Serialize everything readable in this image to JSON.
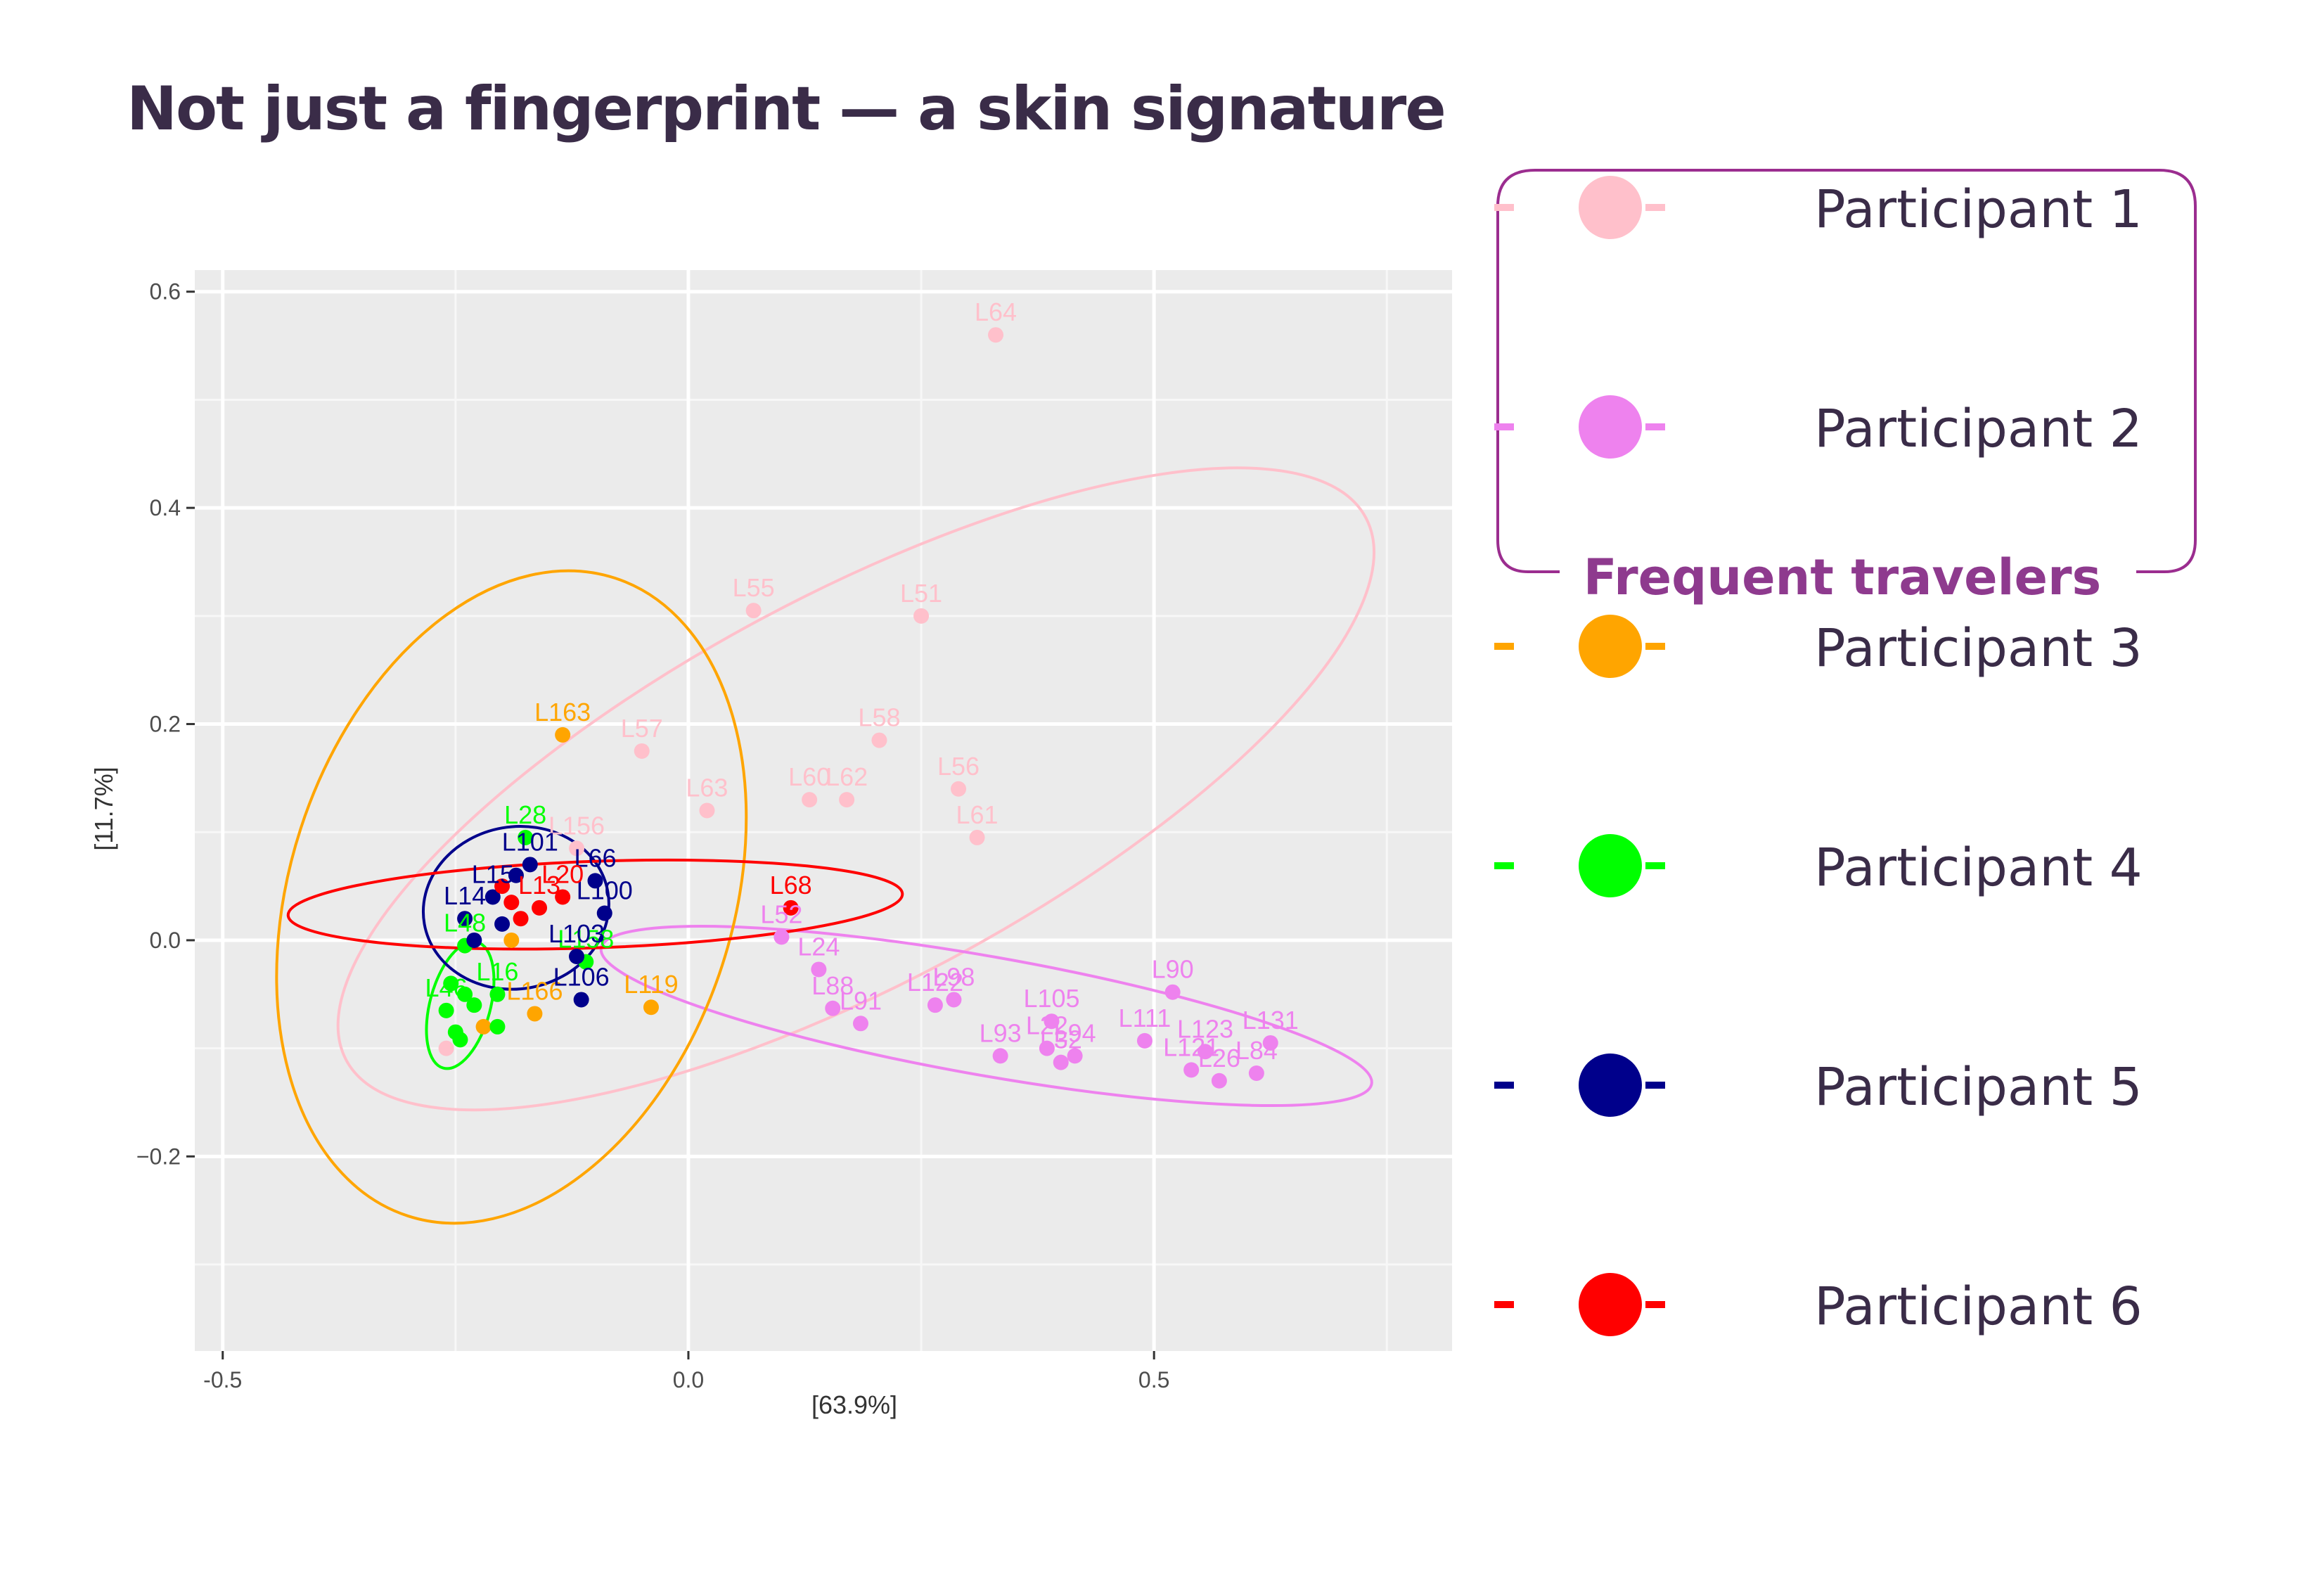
{
  "page": {
    "title": "Not just a fingerprint — a skin signature"
  },
  "legend": {
    "group_label": "Frequent travelers",
    "items": [
      {
        "label": "Participant 1",
        "color": "#ffc0cb"
      },
      {
        "label": "Participant 2",
        "color": "#ee82ee"
      },
      {
        "label": "Participant 3",
        "color": "#ffa500"
      },
      {
        "label": "Participant 4",
        "color": "#00ff00"
      },
      {
        "label": "Participant 5",
        "color": "#00008b"
      },
      {
        "label": "Participant 6",
        "color": "#ff0000"
      }
    ]
  },
  "chart_data": {
    "type": "scatter",
    "title": "",
    "xlabel": "[63.9%]",
    "ylabel": "[11.7%]",
    "xlim": [
      -0.53,
      0.82
    ],
    "ylim": [
      -0.38,
      0.62
    ],
    "x_ticks": [
      -0.5,
      0.0,
      0.5
    ],
    "x_tick_labels": [
      "-0.5",
      "0.0",
      "0.5"
    ],
    "y_ticks": [
      -0.2,
      0.0,
      0.2,
      0.4,
      0.6
    ],
    "y_tick_labels": [
      "−0.2",
      "0.0",
      "0.2",
      "0.4",
      "0.6"
    ],
    "series": [
      {
        "name": "Participant 1",
        "color": "#ffc0cb",
        "ellipse": {
          "cx": 0.18,
          "cy": 0.14,
          "rx": 0.62,
          "ry": 0.18,
          "angle_deg": 28
        },
        "points": [
          {
            "x": 0.33,
            "y": 0.56,
            "label": "L64"
          },
          {
            "x": 0.07,
            "y": 0.305,
            "label": "L55"
          },
          {
            "x": 0.25,
            "y": 0.3,
            "label": "L51"
          },
          {
            "x": 0.205,
            "y": 0.185,
            "label": "L58"
          },
          {
            "x": -0.05,
            "y": 0.175,
            "label": "L57"
          },
          {
            "x": 0.29,
            "y": 0.14,
            "label": "L56"
          },
          {
            "x": 0.02,
            "y": 0.12,
            "label": "L63"
          },
          {
            "x": 0.13,
            "y": 0.13,
            "label": "L60"
          },
          {
            "x": 0.17,
            "y": 0.13,
            "label": "L62"
          },
          {
            "x": 0.31,
            "y": 0.095,
            "label": "L61"
          },
          {
            "x": -0.12,
            "y": 0.085,
            "label": "L156"
          },
          {
            "x": -0.26,
            "y": -0.1,
            "label": ""
          }
        ]
      },
      {
        "name": "Participant 2",
        "color": "#ee82ee",
        "ellipse": {
          "cx": 0.32,
          "cy": -0.07,
          "rx": 0.42,
          "ry": 0.055,
          "angle_deg": -10
        },
        "points": [
          {
            "x": 0.52,
            "y": -0.048,
            "label": "L90"
          },
          {
            "x": 0.1,
            "y": 0.003,
            "label": "L52"
          },
          {
            "x": 0.14,
            "y": -0.027,
            "label": "L24"
          },
          {
            "x": 0.155,
            "y": -0.063,
            "label": "L88"
          },
          {
            "x": 0.185,
            "y": -0.077,
            "label": "L91"
          },
          {
            "x": 0.265,
            "y": -0.06,
            "label": "L122"
          },
          {
            "x": 0.285,
            "y": -0.055,
            "label": "L98"
          },
          {
            "x": 0.335,
            "y": -0.107,
            "label": "L93"
          },
          {
            "x": 0.39,
            "y": -0.075,
            "label": "L105"
          },
          {
            "x": 0.385,
            "y": -0.1,
            "label": "L22"
          },
          {
            "x": 0.4,
            "y": -0.113,
            "label": "L32"
          },
          {
            "x": 0.415,
            "y": -0.107,
            "label": "L94"
          },
          {
            "x": 0.49,
            "y": -0.093,
            "label": "L111"
          },
          {
            "x": 0.555,
            "y": -0.103,
            "label": "L123"
          },
          {
            "x": 0.54,
            "y": -0.12,
            "label": "L121"
          },
          {
            "x": 0.57,
            "y": -0.13,
            "label": "L26"
          },
          {
            "x": 0.61,
            "y": -0.123,
            "label": "L84"
          },
          {
            "x": 0.625,
            "y": -0.095,
            "label": "L131"
          }
        ]
      },
      {
        "name": "Participant 3",
        "color": "#ffa500",
        "ellipse": {
          "cx": -0.19,
          "cy": 0.04,
          "rx": 0.36,
          "ry": 0.205,
          "angle_deg": 72
        },
        "points": [
          {
            "x": -0.135,
            "y": 0.19,
            "label": "L163"
          },
          {
            "x": -0.04,
            "y": -0.062,
            "label": "L119"
          },
          {
            "x": -0.165,
            "y": -0.068,
            "label": "L166"
          },
          {
            "x": -0.22,
            "y": -0.08,
            "label": ""
          },
          {
            "x": -0.19,
            "y": -0.0,
            "label": ""
          }
        ]
      },
      {
        "name": "Participant 4",
        "color": "#00ff00",
        "ellipse": {
          "cx": -0.245,
          "cy": -0.06,
          "rx": 0.07,
          "ry": 0.028,
          "angle_deg": 75
        },
        "points": [
          {
            "x": -0.175,
            "y": 0.095,
            "label": "L28"
          },
          {
            "x": -0.24,
            "y": -0.005,
            "label": "L48"
          },
          {
            "x": -0.11,
            "y": -0.02,
            "label": "L158"
          },
          {
            "x": -0.255,
            "y": -0.04,
            "label": ""
          },
          {
            "x": -0.24,
            "y": -0.05,
            "label": ""
          },
          {
            "x": -0.23,
            "y": -0.06,
            "label": ""
          },
          {
            "x": -0.25,
            "y": -0.085,
            "label": ""
          },
          {
            "x": -0.245,
            "y": -0.092,
            "label": ""
          },
          {
            "x": -0.205,
            "y": -0.08,
            "label": ""
          },
          {
            "x": -0.26,
            "y": -0.065,
            "label": "L46"
          },
          {
            "x": -0.205,
            "y": -0.05,
            "label": "L16"
          }
        ]
      },
      {
        "name": "Participant 5",
        "color": "#00008b",
        "ellipse": {
          "cx": -0.185,
          "cy": 0.03,
          "rx": 0.1,
          "ry": 0.075,
          "angle_deg": 10
        },
        "points": [
          {
            "x": -0.17,
            "y": 0.07,
            "label": "L101"
          },
          {
            "x": -0.1,
            "y": 0.055,
            "label": "L66"
          },
          {
            "x": -0.09,
            "y": 0.025,
            "label": "L100"
          },
          {
            "x": -0.12,
            "y": -0.015,
            "label": "L103"
          },
          {
            "x": -0.115,
            "y": -0.055,
            "label": "L106"
          },
          {
            "x": -0.24,
            "y": 0.02,
            "label": "L14"
          },
          {
            "x": -0.21,
            "y": 0.04,
            "label": "L15"
          },
          {
            "x": -0.2,
            "y": 0.015,
            "label": ""
          },
          {
            "x": -0.185,
            "y": 0.06,
            "label": ""
          },
          {
            "x": -0.23,
            "y": 0.0,
            "label": ""
          }
        ]
      },
      {
        "name": "Participant 6",
        "color": "#ff0000",
        "ellipse": {
          "cx": -0.1,
          "cy": 0.033,
          "rx": 0.33,
          "ry": 0.04,
          "angle_deg": 2
        },
        "points": [
          {
            "x": 0.11,
            "y": 0.03,
            "label": "L68"
          },
          {
            "x": -0.135,
            "y": 0.04,
            "label": "L20"
          },
          {
            "x": -0.19,
            "y": 0.035,
            "label": ""
          },
          {
            "x": -0.18,
            "y": 0.02,
            "label": ""
          },
          {
            "x": -0.16,
            "y": 0.03,
            "label": "L13"
          },
          {
            "x": -0.2,
            "y": 0.05,
            "label": ""
          }
        ]
      }
    ]
  }
}
